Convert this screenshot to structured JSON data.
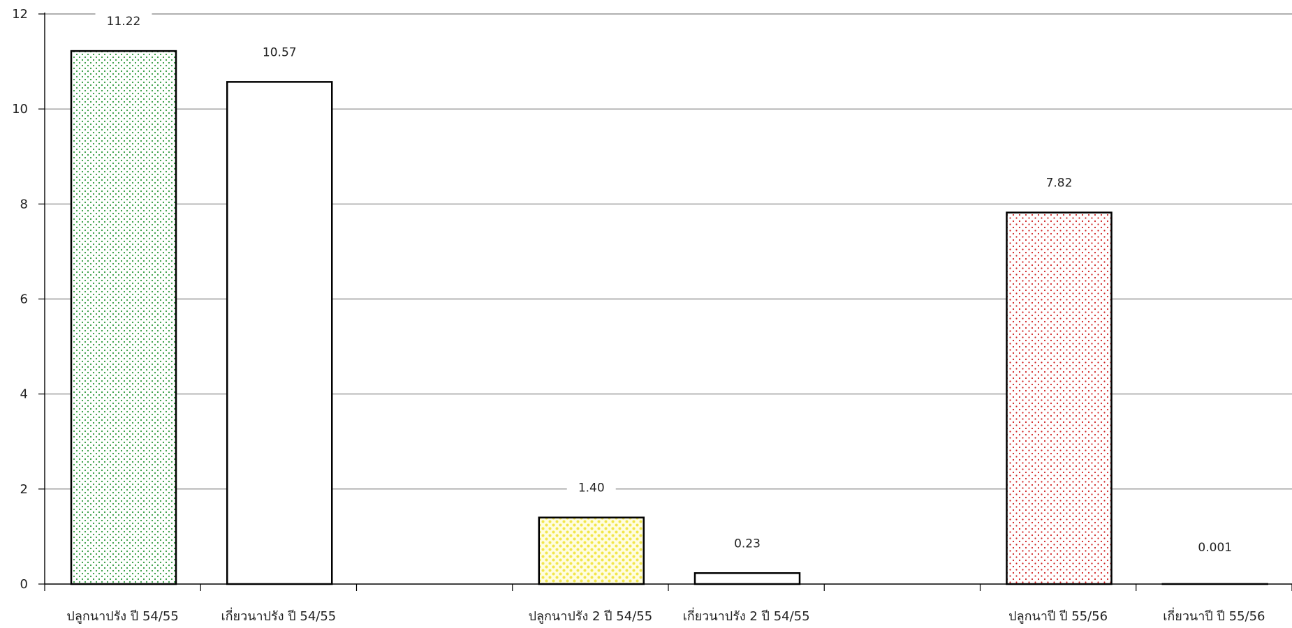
{
  "chart_data": {
    "type": "bar",
    "title": "",
    "xlabel": "",
    "ylabel": "",
    "ylim": [
      0,
      12
    ],
    "yticks": [
      0,
      2,
      4,
      6,
      8,
      10,
      12
    ],
    "grid": true,
    "legend": "none",
    "categories": [
      "ปลูกนาปรัง ปี 54/55",
      "เกี่ยวนาปรัง ปี 54/55",
      "",
      "ปลูกนาปรัง 2 ปี 54/55",
      "เกี่ยวนาปรัง 2 ปี 54/55",
      "",
      "ปลูกนาปี ปี 55/56",
      "เกี่ยวนาปี ปี 55/56"
    ],
    "values": [
      11.22,
      10.57,
      null,
      1.4,
      0.23,
      null,
      7.82,
      0.001
    ],
    "value_labels": [
      "11.22",
      "10.57",
      "",
      "1.40",
      "0.23",
      "",
      "7.82",
      "0.001"
    ],
    "bar_fills": [
      "green-dots",
      "white",
      "none",
      "yellow-dots",
      "white",
      "none",
      "red-dots",
      "white"
    ],
    "colors": {
      "green": "#2e9a3c",
      "yellow": "#f2e64a",
      "red": "#d02020",
      "outline": "#000000",
      "grid": "#808080"
    }
  }
}
